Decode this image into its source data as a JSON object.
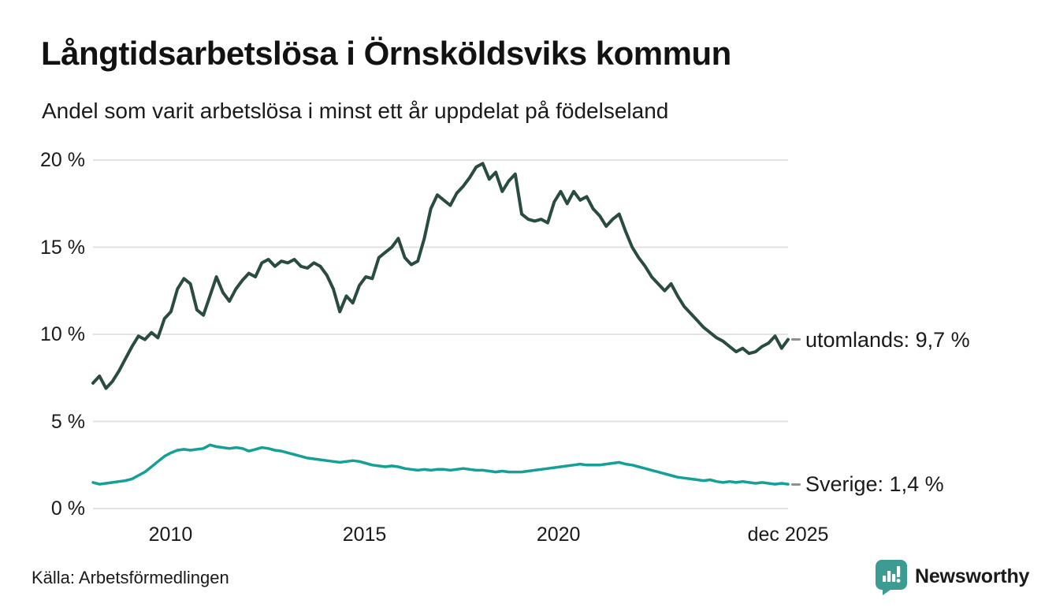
{
  "header": {
    "title": "Långtidsarbetslösa i Örnsköldsviks kommun",
    "subtitle": "Andel som varit arbetslösa i minst ett år uppdelat på födelseland"
  },
  "footer": {
    "source": "Källa: Arbetsförmedlingen",
    "brand": "Newsworthy"
  },
  "annotations": {
    "utomlands_label": "utomlands: 9,7 %",
    "sverige_label": "Sverige: 1,4 %"
  },
  "colors": {
    "utomlands_line": "#2a4b40",
    "sverige_line": "#14a096",
    "gridline": "#e3e3e3",
    "text": "#1a1a1a",
    "brand_teal": "#3d9c92",
    "connector_dash": "#8f8f8f"
  },
  "chart_data": {
    "type": "line",
    "title": "Långtidsarbetslösa i Örnsköldsviks kommun",
    "subtitle": "Andel som varit arbetslösa i minst ett år uppdelat på födelseland",
    "xlabel": "",
    "ylabel": "",
    "x_start": 2008.0,
    "x_end": 2025.92,
    "ylim": [
      0,
      20
    ],
    "grid": true,
    "legend_position": "end-of-line",
    "y_ticks": [
      {
        "label": "0 %",
        "value": 0
      },
      {
        "label": "5 %",
        "value": 5
      },
      {
        "label": "10 %",
        "value": 10
      },
      {
        "label": "15 %",
        "value": 15
      },
      {
        "label": "20 %",
        "value": 20
      }
    ],
    "x_ticks": [
      {
        "label": "2010",
        "year": 2010
      },
      {
        "label": "2015",
        "year": 2015
      },
      {
        "label": "2020",
        "year": 2020
      },
      {
        "label": "dec 2025",
        "year": 2025.92
      }
    ],
    "series": [
      {
        "name": "utomlands",
        "end_label": "utomlands: 9,7 %",
        "end_value": 9.7,
        "color": "#2a4b40",
        "stroke_width": 4,
        "values": [
          7.2,
          7.6,
          6.9,
          7.3,
          7.9,
          8.6,
          9.3,
          9.9,
          9.7,
          10.1,
          9.8,
          10.9,
          11.3,
          12.6,
          13.2,
          12.9,
          11.4,
          11.1,
          12.2,
          13.3,
          12.4,
          11.9,
          12.6,
          13.1,
          13.5,
          13.3,
          14.1,
          14.3,
          13.9,
          14.2,
          14.1,
          14.3,
          13.9,
          13.8,
          14.1,
          13.9,
          13.4,
          12.6,
          11.3,
          12.2,
          11.8,
          12.8,
          13.3,
          13.2,
          14.4,
          14.7,
          15.0,
          15.5,
          14.4,
          14.0,
          14.2,
          15.5,
          17.2,
          18.0,
          17.7,
          17.4,
          18.1,
          18.5,
          19.0,
          19.6,
          19.8,
          18.9,
          19.3,
          18.2,
          18.8,
          19.2,
          16.9,
          16.6,
          16.5,
          16.6,
          16.4,
          17.6,
          18.2,
          17.5,
          18.2,
          17.7,
          17.9,
          17.2,
          16.8,
          16.2,
          16.6,
          16.9,
          15.9,
          15.0,
          14.4,
          13.9,
          13.3,
          12.9,
          12.5,
          12.9,
          12.2,
          11.6,
          11.2,
          10.8,
          10.4,
          10.1,
          9.8,
          9.6,
          9.3,
          9.0,
          9.2,
          8.9,
          9.0,
          9.3,
          9.5,
          9.9,
          9.2,
          9.7
        ]
      },
      {
        "name": "Sverige",
        "end_label": "Sverige: 1,4 %",
        "end_value": 1.4,
        "color": "#14a096",
        "stroke_width": 3.5,
        "values": [
          1.5,
          1.4,
          1.45,
          1.5,
          1.55,
          1.6,
          1.7,
          1.9,
          2.1,
          2.4,
          2.7,
          3.0,
          3.2,
          3.35,
          3.4,
          3.35,
          3.4,
          3.45,
          3.65,
          3.55,
          3.5,
          3.45,
          3.5,
          3.45,
          3.3,
          3.4,
          3.5,
          3.45,
          3.35,
          3.3,
          3.2,
          3.1,
          3.0,
          2.9,
          2.85,
          2.8,
          2.75,
          2.7,
          2.65,
          2.7,
          2.75,
          2.7,
          2.6,
          2.5,
          2.45,
          2.4,
          2.45,
          2.4,
          2.3,
          2.25,
          2.2,
          2.25,
          2.2,
          2.25,
          2.25,
          2.2,
          2.25,
          2.3,
          2.25,
          2.2,
          2.2,
          2.15,
          2.1,
          2.15,
          2.1,
          2.1,
          2.1,
          2.15,
          2.2,
          2.25,
          2.3,
          2.35,
          2.4,
          2.45,
          2.5,
          2.55,
          2.5,
          2.5,
          2.5,
          2.55,
          2.6,
          2.65,
          2.55,
          2.5,
          2.4,
          2.3,
          2.2,
          2.1,
          2.0,
          1.9,
          1.8,
          1.75,
          1.7,
          1.65,
          1.6,
          1.65,
          1.55,
          1.5,
          1.55,
          1.5,
          1.55,
          1.5,
          1.45,
          1.5,
          1.45,
          1.4,
          1.45,
          1.4
        ]
      }
    ]
  }
}
